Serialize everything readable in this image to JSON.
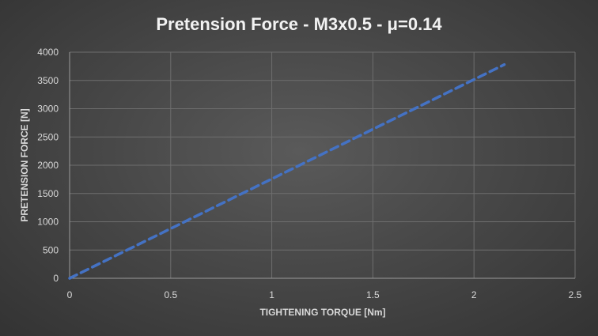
{
  "chart_data": {
    "type": "line",
    "title": "Pretension Force - M3x0.5 - μ=0.14",
    "xlabel": "TIGHTENING TORQUE [Nm]",
    "ylabel": "PRETENSION FORCE [N]",
    "xlim": [
      0,
      2.5
    ],
    "ylim": [
      0,
      4000
    ],
    "x_ticks": [
      "0",
      "0.5",
      "1",
      "1.5",
      "2",
      "2.5"
    ],
    "y_ticks": [
      "0",
      "500",
      "1000",
      "1500",
      "2000",
      "2500",
      "3000",
      "3500",
      "4000"
    ],
    "grid": true,
    "legend": "none",
    "series": [
      {
        "line_style": "dashed",
        "color": "#4472C4",
        "x": [
          0,
          2.15
        ],
        "y": [
          0,
          3780
        ]
      }
    ]
  },
  "colors": {
    "text": "#d9d9d9",
    "title": "#f2f2f2",
    "grid": "#6e6e6e",
    "axis": "#9a9a9a"
  }
}
